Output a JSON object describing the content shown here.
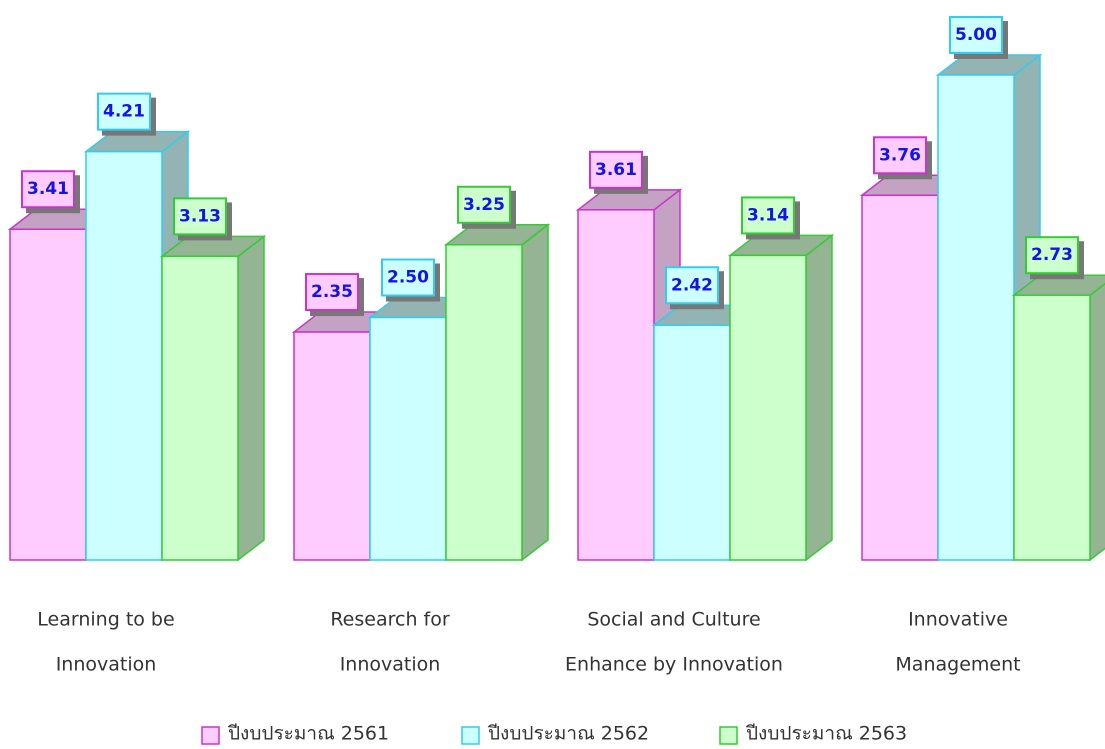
{
  "chart_data": {
    "type": "bar3d",
    "categories": [
      [
        "Learning to be",
        "Innovation"
      ],
      [
        "Research for",
        "Innovation"
      ],
      [
        "Social and Culture",
        "Enhance by Innovation"
      ],
      [
        "Innovative",
        "Management"
      ]
    ],
    "series": [
      {
        "name": "ปีงบประมาณ 2561",
        "color": "#ffccff",
        "border": "#cc33cc",
        "side": "#c4a2c4",
        "values": [
          3.41,
          2.35,
          3.61,
          3.76
        ],
        "value_labels": [
          "3.41",
          "2.35",
          "3.61",
          "3.76"
        ]
      },
      {
        "name": "ปีงบประมาณ 2562",
        "color": "#ccffff",
        "border": "#33ccee",
        "side": "#94b4b4",
        "values": [
          4.21,
          2.5,
          2.42,
          5.0
        ],
        "value_labels": [
          "4.21",
          "2.50",
          "2.42",
          "5.00"
        ]
      },
      {
        "name": "ปีงบประมาณ 2563",
        "color": "#ccffcc",
        "border": "#33cc33",
        "side": "#94b494",
        "values": [
          3.13,
          3.25,
          3.14,
          2.73
        ],
        "value_labels": [
          "3.13",
          "3.25",
          "3.14",
          "2.73"
        ]
      }
    ]
  }
}
